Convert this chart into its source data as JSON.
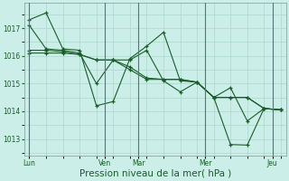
{
  "bg_color": "#cceee8",
  "grid_color": "#aad8cc",
  "line_color": "#1a5c2a",
  "xlabel": "Pression niveau de la mer( hPa )",
  "ylim": [
    1012.4,
    1017.9
  ],
  "yticks": [
    1013,
    1014,
    1015,
    1016,
    1017
  ],
  "ylabel_fontsize": 6,
  "xlabel_fontsize": 7.5,
  "series": [
    {
      "x": [
        0,
        1,
        2,
        3,
        4,
        5,
        6,
        7,
        8,
        9,
        10,
        11,
        12,
        13,
        14,
        15
      ],
      "y": [
        1017.3,
        1017.55,
        1016.25,
        1016.2,
        1014.2,
        1014.35,
        1015.9,
        1016.35,
        1016.85,
        1015.1,
        1015.05,
        1014.5,
        1014.85,
        1013.65,
        1014.1,
        1014.05
      ]
    },
    {
      "x": [
        0,
        1,
        2,
        3,
        4,
        5,
        6,
        7,
        8,
        9,
        10,
        11,
        12,
        13,
        14,
        15
      ],
      "y": [
        1017.1,
        1016.25,
        1016.2,
        1016.1,
        1015.0,
        1015.85,
        1015.85,
        1016.2,
        1015.1,
        1014.7,
        1015.05,
        1014.5,
        1012.8,
        1012.78,
        1014.1,
        1014.05
      ]
    },
    {
      "x": [
        0,
        1,
        2,
        3,
        4,
        5,
        6,
        7,
        8,
        9,
        10,
        11,
        12,
        13,
        14,
        15
      ],
      "y": [
        1016.2,
        1016.2,
        1016.15,
        1016.05,
        1015.85,
        1015.85,
        1015.6,
        1015.2,
        1015.15,
        1015.15,
        1015.05,
        1014.5,
        1014.5,
        1014.5,
        1014.1,
        1014.05
      ]
    },
    {
      "x": [
        0,
        1,
        2,
        3,
        4,
        5,
        6,
        7,
        8,
        9,
        10,
        11,
        12,
        13,
        14,
        15
      ],
      "y": [
        1016.1,
        1016.1,
        1016.1,
        1016.05,
        1015.85,
        1015.85,
        1015.5,
        1015.15,
        1015.15,
        1015.15,
        1015.05,
        1014.5,
        1014.5,
        1014.5,
        1014.1,
        1014.05
      ]
    }
  ],
  "vline_x": [
    0,
    4.5,
    6.5,
    10.5,
    14.5
  ],
  "xtick_positions": [
    0.0,
    4.5,
    6.5,
    10.5,
    14.5
  ],
  "xtick_labels": [
    "Lun",
    "Ven",
    "Mar",
    "Mer",
    "Jeu"
  ],
  "figsize": [
    3.2,
    2.0
  ],
  "dpi": 100
}
